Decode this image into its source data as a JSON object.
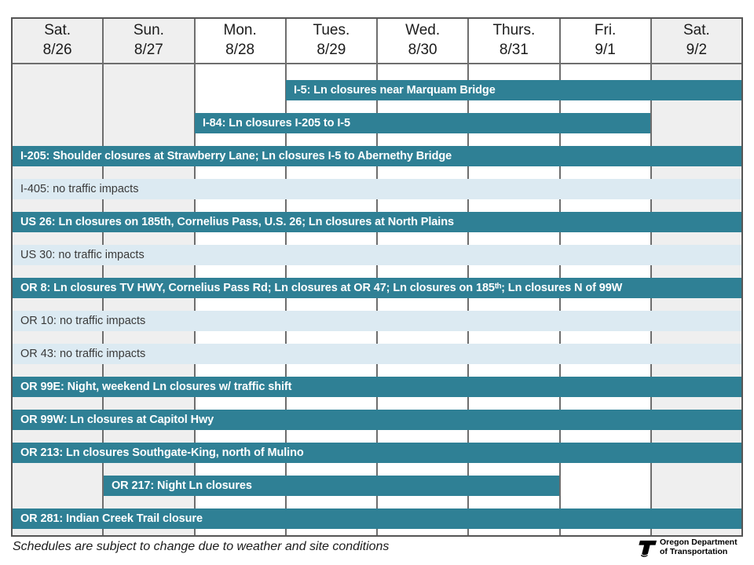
{
  "header": {
    "days": [
      {
        "name": "Sat.",
        "date": "8/26",
        "weekend": true
      },
      {
        "name": "Sun.",
        "date": "8/27",
        "weekend": true
      },
      {
        "name": "Mon.",
        "date": "8/28",
        "weekend": false
      },
      {
        "name": "Tues.",
        "date": "8/29",
        "weekend": false
      },
      {
        "name": "Wed.",
        "date": "8/30",
        "weekend": false
      },
      {
        "name": "Thurs.",
        "date": "8/31",
        "weekend": false
      },
      {
        "name": "Fri.",
        "date": "9/1",
        "weekend": false
      },
      {
        "name": "Sat.",
        "date": "9/2",
        "weekend": true
      }
    ]
  },
  "colors": {
    "closure": "#2F8095",
    "no_impact": "#DCEAF2",
    "weekend": "#EFEFEF",
    "grid": "#6E6E6E",
    "border": "#555555"
  },
  "chart_data": {
    "type": "bar",
    "subtype": "gantt-schedule",
    "title": "",
    "day_columns": [
      "Sat. 8/26",
      "Sun. 8/27",
      "Mon. 8/28",
      "Tues. 8/29",
      "Wed. 8/30",
      "Thurs. 8/31",
      "Fri. 9/1",
      "Sat. 9/2"
    ],
    "x_range_days": [
      0,
      8
    ],
    "legend": {
      "closure": "teal bar = closure activity",
      "no_impact": "light blue bar = no traffic impacts"
    },
    "rows": [
      {
        "route": "I-5",
        "label": "I-5: Ln closures near Marquam Bridge",
        "start": 3,
        "end": 8,
        "status": "closure"
      },
      {
        "route": "I-84",
        "label": "I-84: Ln closures I-205 to I-5",
        "start": 2,
        "end": 7,
        "status": "closure"
      },
      {
        "route": "I-205",
        "label": "I-205: Shoulder closures at Strawberry Lane; Ln closures I-5 to Abernethy Bridge",
        "start": 0,
        "end": 8,
        "status": "closure"
      },
      {
        "route": "I-405",
        "label": "I-405: no traffic impacts",
        "start": 0,
        "end": 8,
        "status": "no-impact"
      },
      {
        "route": "US 26",
        "label": "US 26: Ln closures on 185th, Cornelius Pass, U.S. 26; Ln closures at North Plains",
        "start": 0,
        "end": 8,
        "status": "closure"
      },
      {
        "route": "US 30",
        "label": "US 30: no traffic impacts",
        "start": 0,
        "end": 8,
        "status": "no-impact"
      },
      {
        "route": "OR 8",
        "label": "OR 8: Ln closures TV HWY, Cornelius Pass Rd; Ln closures at OR 47; Ln closures on 185ᵗʰ; Ln closures N of 99W",
        "start": 0,
        "end": 8,
        "status": "closure"
      },
      {
        "route": "OR 10",
        "label": "OR 10: no traffic impacts",
        "start": 0,
        "end": 8,
        "status": "no-impact"
      },
      {
        "route": "OR 43",
        "label": "OR 43: no traffic impacts",
        "start": 0,
        "end": 8,
        "status": "no-impact"
      },
      {
        "route": "OR 99E",
        "label": "OR 99E: Night, weekend Ln closures w/ traffic shift",
        "start": 0,
        "end": 8,
        "status": "closure"
      },
      {
        "route": "OR 99W",
        "label": "OR 99W: Ln closures at Capitol Hwy",
        "start": 0,
        "end": 8,
        "status": "closure"
      },
      {
        "route": "OR 213",
        "label": "OR 213: Ln closures Southgate-King, north of Mulino",
        "start": 0,
        "end": 8,
        "status": "closure"
      },
      {
        "route": "OR 217",
        "label": "OR 217: Night Ln closures",
        "start": 1,
        "end": 6,
        "status": "closure"
      },
      {
        "route": "OR 281",
        "label": "OR 281: Indian Creek Trail closure",
        "start": 0,
        "end": 8,
        "status": "closure"
      }
    ]
  },
  "footer": {
    "note": "Schedules are subject to change due to weather and site conditions",
    "logo_line1": "Oregon Department",
    "logo_line2": "of Transportation"
  }
}
